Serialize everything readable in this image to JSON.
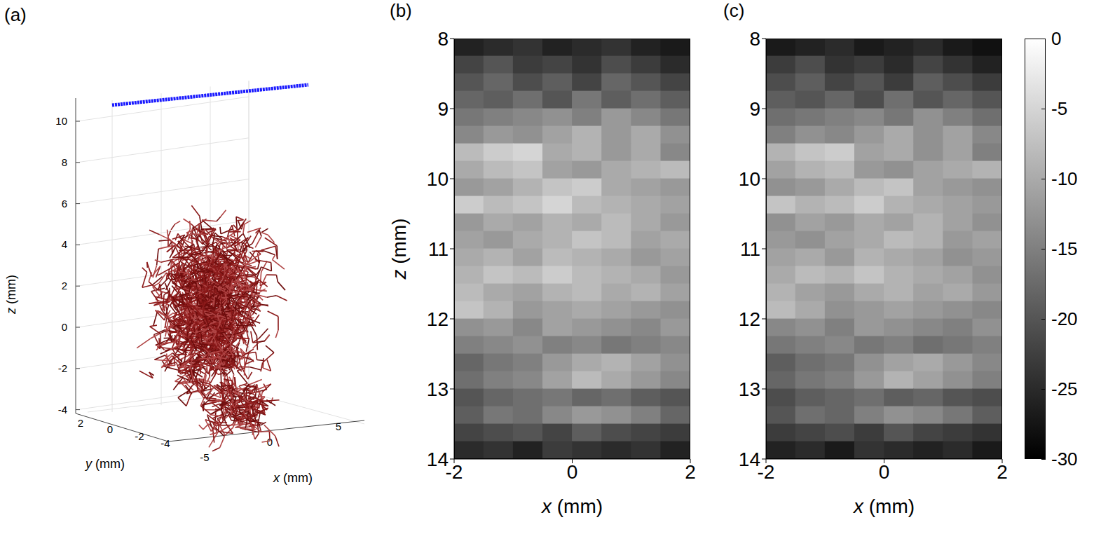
{
  "chart_data": [
    {
      "type": "3d",
      "title": "(a)",
      "x_label": "x (mm)",
      "xticks": [
        -5,
        0,
        5
      ],
      "y_label": "y (mm)",
      "yticks": [
        2,
        0,
        -2,
        -4
      ],
      "z_label": "z (mm)",
      "zticks": [
        -4,
        -2,
        0,
        2,
        4,
        6,
        8,
        10
      ]
    },
    {
      "type": "heatmap",
      "title": "(b)",
      "x_label": "x (mm)",
      "y_label": "z (mm)",
      "xlim": [
        -2,
        2
      ],
      "xticks": [
        -2,
        0,
        2
      ],
      "ylim": [
        8,
        14
      ],
      "yticks": [
        8,
        9,
        10,
        11,
        12,
        13,
        14
      ],
      "x": [
        -1.75,
        -1.25,
        -0.75,
        -0.25,
        0.25,
        0.75,
        1.25,
        1.75
      ],
      "y": [
        8.125,
        8.375,
        8.625,
        8.875,
        9.125,
        9.375,
        9.625,
        9.875,
        10.125,
        10.375,
        10.625,
        10.875,
        11.125,
        11.375,
        11.625,
        11.875,
        12.125,
        12.375,
        12.625,
        12.875,
        13.125,
        13.375,
        13.625,
        13.875
      ],
      "cells": [
        [
          -26,
          -25,
          -24,
          -26,
          -25,
          -24,
          -26,
          -27
        ],
        [
          -22,
          -20,
          -23,
          -22,
          -24,
          -21,
          -23,
          -25
        ],
        [
          -20,
          -18,
          -21,
          -19,
          -22,
          -18,
          -20,
          -22
        ],
        [
          -18,
          -19,
          -17,
          -20,
          -16,
          -19,
          -17,
          -19
        ],
        [
          -16,
          -15,
          -14,
          -13,
          -15,
          -12,
          -14,
          -16
        ],
        [
          -14,
          -12,
          -13,
          -11,
          -9,
          -12,
          -10,
          -13
        ],
        [
          -8,
          -6,
          -5,
          -10,
          -9,
          -12,
          -10,
          -14
        ],
        [
          -10,
          -8,
          -7,
          -11,
          -12,
          -10,
          -9,
          -8
        ],
        [
          -12,
          -11,
          -9,
          -7,
          -6,
          -10,
          -11,
          -12
        ],
        [
          -6,
          -8,
          -7,
          -5,
          -8,
          -9,
          -10,
          -11
        ],
        [
          -12,
          -10,
          -11,
          -9,
          -10,
          -8,
          -10,
          -12
        ],
        [
          -11,
          -12,
          -10,
          -9,
          -7,
          -8,
          -11,
          -10
        ],
        [
          -10,
          -9,
          -11,
          -8,
          -9,
          -10,
          -12,
          -11
        ],
        [
          -9,
          -7,
          -8,
          -6,
          -8,
          -9,
          -10,
          -12
        ],
        [
          -8,
          -10,
          -11,
          -9,
          -8,
          -10,
          -9,
          -11
        ],
        [
          -7,
          -9,
          -12,
          -11,
          -10,
          -11,
          -12,
          -13
        ],
        [
          -13,
          -12,
          -14,
          -11,
          -12,
          -13,
          -14,
          -12
        ],
        [
          -15,
          -14,
          -13,
          -15,
          -14,
          -16,
          -15,
          -14
        ],
        [
          -18,
          -16,
          -15,
          -12,
          -10,
          -9,
          -11,
          -13
        ],
        [
          -17,
          -15,
          -14,
          -11,
          -8,
          -10,
          -12,
          -14
        ],
        [
          -20,
          -18,
          -17,
          -16,
          -18,
          -17,
          -19,
          -20
        ],
        [
          -19,
          -16,
          -17,
          -14,
          -12,
          -13,
          -15,
          -18
        ],
        [
          -22,
          -21,
          -20,
          -22,
          -19,
          -21,
          -22,
          -23
        ],
        [
          -25,
          -24,
          -26,
          -23,
          -24,
          -25,
          -24,
          -26
        ]
      ]
    },
    {
      "type": "heatmap",
      "title": "(c)",
      "x_label": "x (mm)",
      "xlim": [
        -2,
        2
      ],
      "xticks": [
        -2,
        0,
        2
      ],
      "ylim": [
        8,
        14
      ],
      "yticks": [
        8,
        9,
        10,
        11,
        12,
        13,
        14
      ],
      "x": [
        -1.75,
        -1.25,
        -0.75,
        -0.25,
        0.25,
        0.75,
        1.25,
        1.75
      ],
      "y": [
        8.125,
        8.375,
        8.625,
        8.875,
        9.125,
        9.375,
        9.625,
        9.875,
        10.125,
        10.375,
        10.625,
        10.875,
        11.125,
        11.375,
        11.625,
        11.875,
        12.125,
        12.375,
        12.625,
        12.875,
        13.125,
        13.375,
        13.625,
        13.875
      ],
      "cells": [
        [
          -27,
          -26,
          -25,
          -27,
          -26,
          -25,
          -27,
          -28
        ],
        [
          -23,
          -21,
          -24,
          -23,
          -25,
          -22,
          -24,
          -26
        ],
        [
          -21,
          -19,
          -22,
          -20,
          -23,
          -19,
          -21,
          -23
        ],
        [
          -19,
          -20,
          -18,
          -21,
          -17,
          -20,
          -18,
          -20
        ],
        [
          -17,
          -16,
          -15,
          -14,
          -16,
          -13,
          -15,
          -17
        ],
        [
          -15,
          -13,
          -14,
          -12,
          -10,
          -13,
          -11,
          -14
        ],
        [
          -9,
          -7,
          -6,
          -11,
          -10,
          -13,
          -11,
          -15
        ],
        [
          -11,
          -9,
          -8,
          -12,
          -13,
          -11,
          -10,
          -9
        ],
        [
          -13,
          -12,
          -10,
          -8,
          -7,
          -11,
          -12,
          -13
        ],
        [
          -7,
          -9,
          -8,
          -6,
          -9,
          -10,
          -11,
          -12
        ],
        [
          -13,
          -11,
          -12,
          -10,
          -11,
          -9,
          -11,
          -13
        ],
        [
          -12,
          -13,
          -11,
          -10,
          -8,
          -9,
          -12,
          -11
        ],
        [
          -11,
          -10,
          -12,
          -9,
          -10,
          -11,
          -13,
          -12
        ],
        [
          -10,
          -8,
          -9,
          -7,
          -9,
          -10,
          -11,
          -13
        ],
        [
          -9,
          -11,
          -12,
          -10,
          -9,
          -11,
          -10,
          -12
        ],
        [
          -8,
          -10,
          -13,
          -12,
          -11,
          -12,
          -13,
          -14
        ],
        [
          -14,
          -13,
          -15,
          -12,
          -13,
          -14,
          -15,
          -13
        ],
        [
          -16,
          -15,
          -14,
          -16,
          -15,
          -17,
          -16,
          -15
        ],
        [
          -19,
          -17,
          -16,
          -13,
          -11,
          -10,
          -12,
          -14
        ],
        [
          -18,
          -16,
          -15,
          -12,
          -9,
          -11,
          -13,
          -15
        ],
        [
          -21,
          -19,
          -18,
          -17,
          -19,
          -18,
          -20,
          -21
        ],
        [
          -20,
          -17,
          -18,
          -15,
          -13,
          -14,
          -16,
          -19
        ],
        [
          -23,
          -22,
          -21,
          -23,
          -20,
          -22,
          -23,
          -24
        ],
        [
          -26,
          -25,
          -27,
          -24,
          -25,
          -26,
          -25,
          -27
        ]
      ],
      "colorbar": {
        "range": [
          -30,
          0
        ],
        "ticks": [
          0,
          -5,
          -10,
          -15,
          -20,
          -25,
          -30
        ]
      }
    }
  ]
}
